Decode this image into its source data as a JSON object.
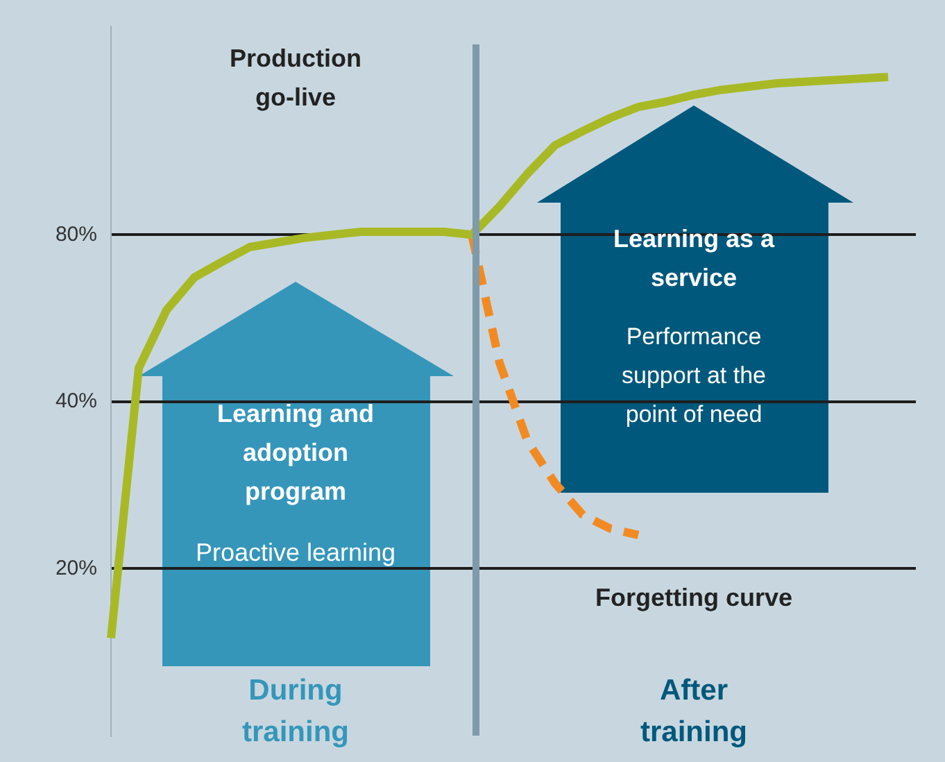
{
  "chart_data": {
    "type": "line",
    "categories": [
      null,
      null,
      null,
      null,
      null,
      null,
      null,
      null,
      null,
      null,
      null,
      null,
      null,
      null,
      null,
      null,
      null,
      null,
      null,
      null,
      null,
      null,
      null,
      null,
      null,
      null,
      null,
      null,
      null,
      null
    ],
    "series": [
      {
        "color": "#a9b925",
        "values": [
          15,
          46,
          58.5,
          67,
          71.5,
          76,
          77.5,
          79,
          80,
          81,
          81,
          81,
          81,
          80,
          90,
          103,
          116,
          123,
          130,
          136,
          139,
          143,
          146,
          148,
          150,
          151,
          152,
          153,
          154,
          null
        ]
      },
      {
        "name": "Forgetting curve",
        "color": "#f28a24",
        "line_style": "dashed",
        "values": [
          null,
          null,
          null,
          null,
          null,
          null,
          null,
          null,
          null,
          null,
          null,
          null,
          null,
          80,
          47,
          34,
          28.5,
          25,
          23.6,
          23,
          null,
          null,
          null,
          null,
          null,
          null,
          null,
          null,
          null,
          null
        ]
      }
    ],
    "ylim": [
      10,
      190
    ],
    "log": "y",
    "yticks": [
      {
        "value": 20,
        "label": "20%"
      },
      {
        "value": 40,
        "label": "40%"
      },
      {
        "value": 80,
        "label": "80%"
      }
    ],
    "tick_labels": "y",
    "grid": "y",
    "legend": false,
    "marker": "none",
    "annotations": [
      "Production go-live",
      "Learning and adoption program",
      "Proactive learning",
      "Learning as a service",
      "Performance support at the point of need",
      "During training",
      "After training"
    ]
  }
}
